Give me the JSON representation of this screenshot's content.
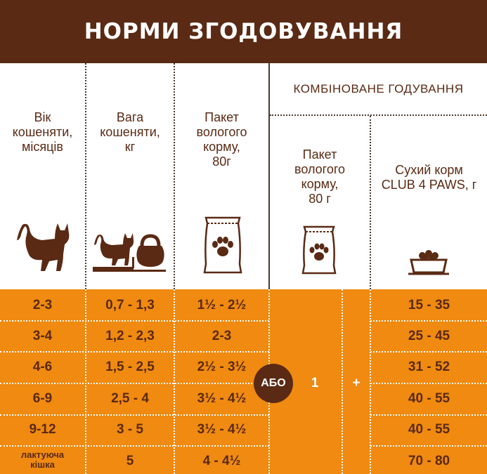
{
  "title": "НОРМИ ЗГОДОВУВАННЯ",
  "headers": {
    "age": [
      "Вік",
      "кошеняти,",
      "місяців"
    ],
    "weight": [
      "Вага",
      "кошеняти,",
      "кг"
    ],
    "wet": [
      "Пакет",
      "вологого",
      "корму,",
      "80г"
    ],
    "combined_title": "КОМБІНОВАНЕ ГОДУВАННЯ",
    "comb_wet": [
      "Пакет",
      "вологого",
      "корму,",
      "80 г"
    ],
    "comb_dry": [
      "Сухий корм",
      "CLUB 4 PAWS, г"
    ]
  },
  "icons": {
    "age": "cat-icon",
    "weight": "cat-on-scale-kettlebell-icon",
    "wet": "wet-food-pouch-paw-icon",
    "comb_wet": "wet-food-pouch-paw-icon",
    "comb_dry": "food-bowl-icon"
  },
  "rows": [
    {
      "age": "2-3",
      "weight": "0,7 - 1,3",
      "wet": "1½ - 2½",
      "dry": "15 - 35"
    },
    {
      "age": "3-4",
      "weight": "1,2 - 2,3",
      "wet": "2-3",
      "dry": "25 - 45"
    },
    {
      "age": "4-6",
      "weight": "1,5 - 2,5",
      "wet": "2½ - 3½",
      "dry": "31 - 52"
    },
    {
      "age": "6-9",
      "weight": "2,5 - 4",
      "wet": "3½ - 4½",
      "dry": "40 - 55"
    },
    {
      "age": "9-12",
      "weight": "3 - 5",
      "wet": "3½ - 4½",
      "dry": "40 - 55"
    },
    {
      "age_line1": "лактуюча",
      "age_line2": "кішка",
      "weight": "5",
      "wet": "4 - 4½",
      "dry": "70 - 80"
    }
  ],
  "combined": {
    "or_label": "АБО",
    "wet_count": "1",
    "plus": "+"
  },
  "colors": {
    "brown": "#5a2a14",
    "orange": "#f08a10",
    "white": "#ffffff"
  }
}
